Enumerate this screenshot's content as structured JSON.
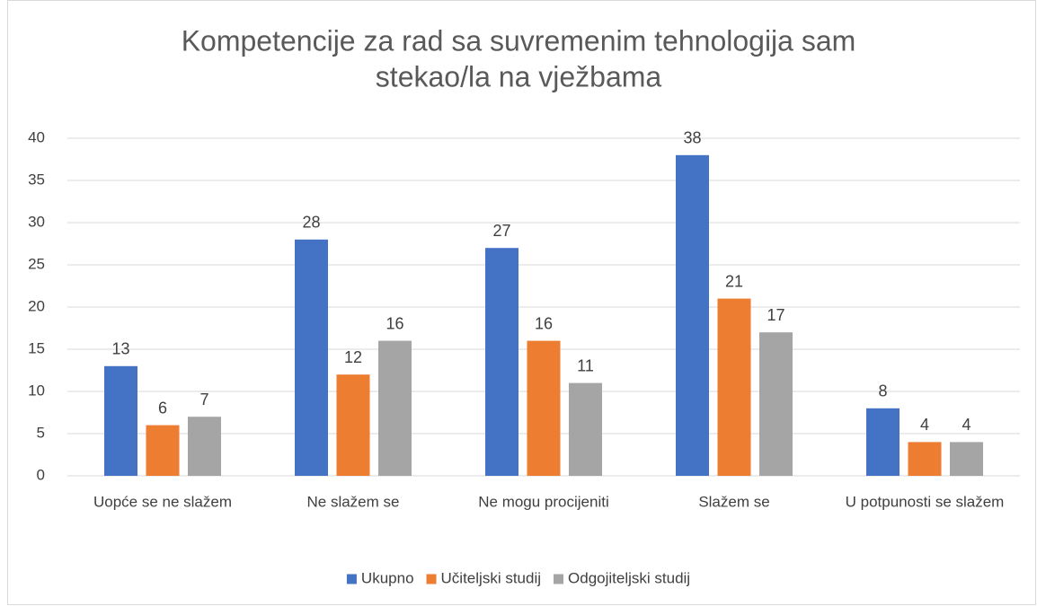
{
  "chart_data": {
    "type": "bar",
    "title": [
      "Kompetencije za rad sa suvremenim tehnologija sam",
      "stekao/la na vježbama"
    ],
    "categories": [
      "Uopće se ne slažem",
      "Ne slažem se",
      "Ne mogu procijeniti",
      "Slažem se",
      "U potpunosti se slažem"
    ],
    "series": [
      {
        "name": "Ukupno",
        "color": "#4472c4",
        "values": [
          13,
          28,
          27,
          38,
          8
        ]
      },
      {
        "name": "Učiteljski studij",
        "color": "#ed7d31",
        "values": [
          6,
          12,
          16,
          21,
          4
        ]
      },
      {
        "name": "Odgojiteljski studij",
        "color": "#a5a5a5",
        "values": [
          7,
          16,
          11,
          17,
          4
        ]
      }
    ],
    "ylim": [
      0,
      40
    ],
    "yticks": [
      0,
      5,
      10,
      15,
      20,
      25,
      30,
      35,
      40
    ],
    "grid": true,
    "legend": "bottom"
  }
}
